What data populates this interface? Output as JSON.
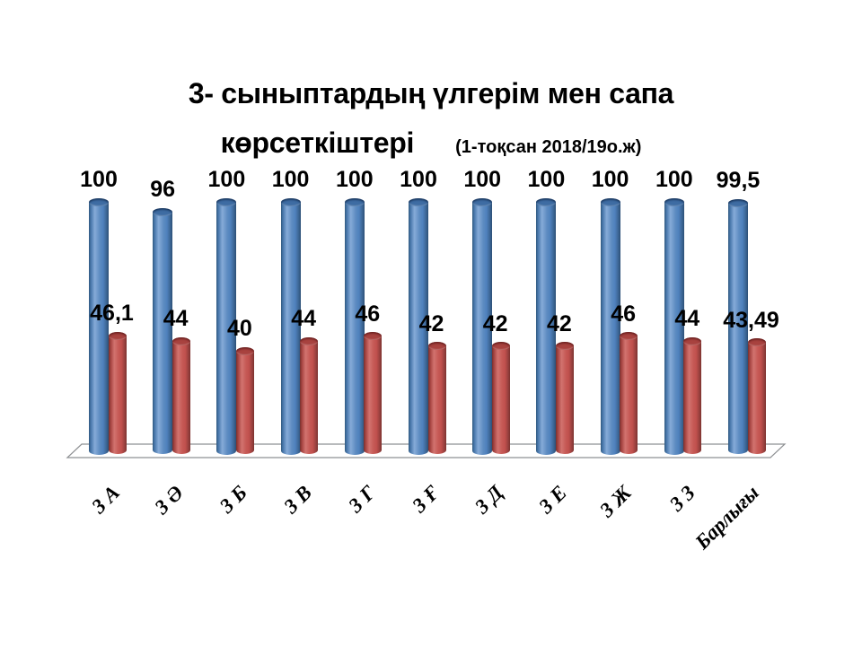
{
  "slide": {
    "title_line1": "3- сыныптардың үлгерім мен сапа",
    "title_line2": "көрсеткіштері",
    "title_subtitle": "(1-тоқсан 2018/19о.ж)"
  },
  "chart_data": {
    "type": "bar",
    "style": "3d-cylinder",
    "title": "3- сыныптардың үлгерім мен сапа көрсеткіштері (1-тоқсан 2018/19о.ж)",
    "categories": [
      "3 А",
      "3 Ә",
      "3 Б",
      "3 В",
      "3 Г",
      "3 Ғ",
      "3 Д",
      "3 Е",
      "3 Ж",
      "3 З",
      "Барлығы"
    ],
    "series": [
      {
        "color": "#4f81bd",
        "values": [
          100,
          96,
          100,
          100,
          100,
          100,
          100,
          100,
          100,
          100,
          99.5
        ],
        "labels": [
          "100",
          "96",
          "100",
          "100",
          "100",
          "100",
          "100",
          "100",
          "100",
          "100",
          "99,5"
        ]
      },
      {
        "color": "#c0504d",
        "values": [
          46.1,
          44,
          40,
          44,
          46,
          42,
          42,
          42,
          46,
          44,
          43.49
        ],
        "labels": [
          "46,1",
          "44",
          "40",
          "44",
          "46",
          "42",
          "42",
          "42",
          "46",
          "44",
          "43,49"
        ]
      }
    ],
    "ylim": [
      0,
      100
    ],
    "grid": false,
    "legend": false,
    "floor_border_color": "#8e9093"
  }
}
